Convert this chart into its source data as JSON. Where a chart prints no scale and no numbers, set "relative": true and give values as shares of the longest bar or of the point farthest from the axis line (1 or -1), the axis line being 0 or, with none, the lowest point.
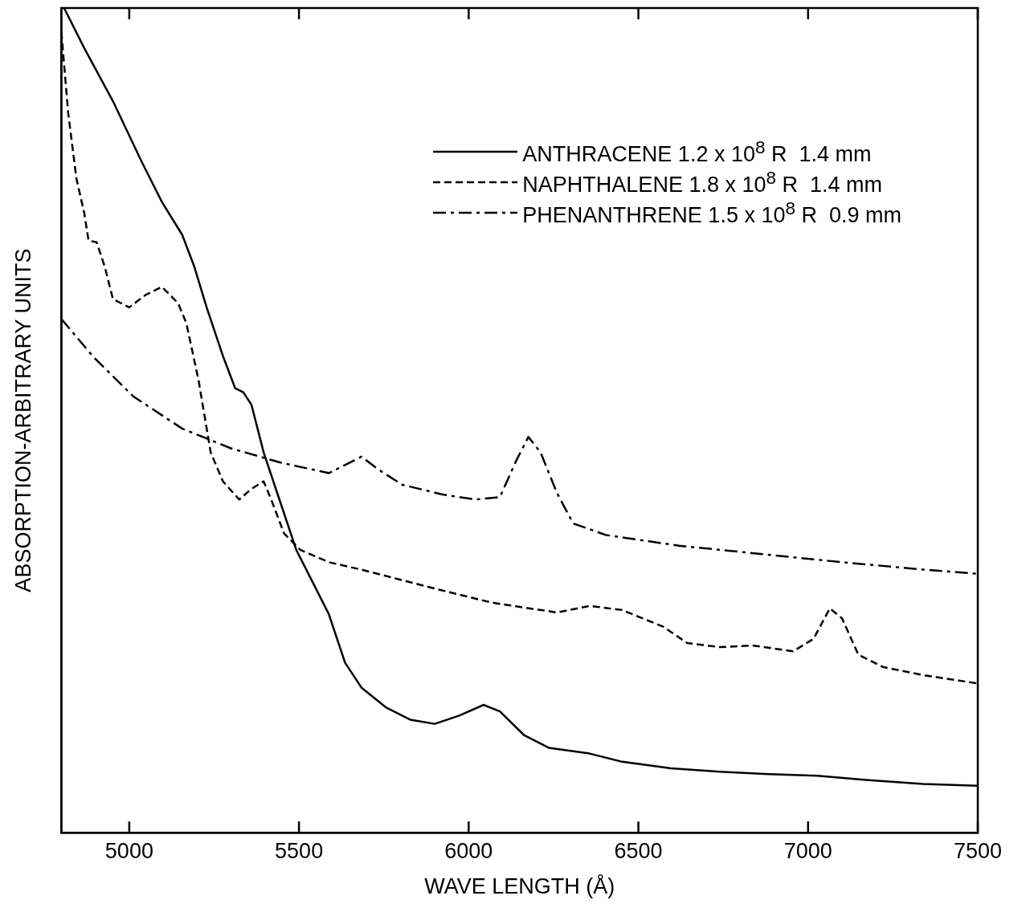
{
  "chart_data": {
    "type": "line",
    "xlabel": "WAVE LENGTH (Å)",
    "ylabel": "ABSORPTION-ARBITRARY UNITS",
    "relative": true,
    "xlim": [
      4800,
      7500
    ],
    "xticks": [
      5000,
      5500,
      6000,
      6500,
      7000,
      7500
    ],
    "grid": false,
    "legend": "top right",
    "marker": "none",
    "series": [
      {
        "name": "ANTHRACENE 1.2 x 10$^{8}$ R  1.4 mm",
        "color": "#000000",
        "line_style": "solid",
        "x": [
          4808,
          4868,
          4952,
          5036,
          5096,
          5156,
          5192,
          5228,
          5276,
          5312,
          5336,
          5360,
          5396,
          5444,
          5492,
          5540,
          5588,
          5636,
          5684,
          5756,
          5828,
          5900,
          5972,
          6044,
          6092,
          6164,
          6236,
          6356,
          6452,
          6596,
          6740,
          6884,
          7027,
          7171,
          7339,
          7500
        ],
        "values": [
          1.0,
          0.951,
          0.887,
          0.814,
          0.765,
          0.725,
          0.686,
          0.637,
          0.578,
          0.539,
          0.534,
          0.519,
          0.461,
          0.402,
          0.343,
          0.304,
          0.265,
          0.206,
          0.176,
          0.152,
          0.137,
          0.132,
          0.142,
          0.155,
          0.147,
          0.118,
          0.103,
          0.096,
          0.086,
          0.078,
          0.074,
          0.071,
          0.069,
          0.064,
          0.059,
          0.057
        ]
      },
      {
        "name": "NAPHTHALENE 1.8 x 10$^{8}$ R  1.4 mm",
        "color": "#000000",
        "line_style": "dashed",
        "x": [
          4800,
          4820,
          4844,
          4868,
          4880,
          4904,
          4928,
          4952,
          5000,
          5048,
          5096,
          5144,
          5168,
          5204,
          5240,
          5276,
          5324,
          5360,
          5396,
          5420,
          5456,
          5504,
          5588,
          5684,
          5900,
          6068,
          6260,
          6356,
          6452,
          6572,
          6644,
          6740,
          6836,
          6956,
          7016,
          7064,
          7100,
          7148,
          7220,
          7340,
          7500
        ],
        "values": [
          0.971,
          0.873,
          0.794,
          0.75,
          0.718,
          0.716,
          0.686,
          0.647,
          0.637,
          0.652,
          0.662,
          0.642,
          0.618,
          0.549,
          0.461,
          0.426,
          0.404,
          0.417,
          0.426,
          0.402,
          0.363,
          0.343,
          0.328,
          0.319,
          0.296,
          0.279,
          0.267,
          0.275,
          0.27,
          0.25,
          0.23,
          0.225,
          0.227,
          0.22,
          0.235,
          0.272,
          0.26,
          0.216,
          0.201,
          0.191,
          0.181
        ]
      },
      {
        "name": "PHENANTHRENE 1.5 x 10$^{8}$ R  0.9 mm",
        "color": "#000000",
        "line_style": "dashdot",
        "x": [
          4800,
          4892,
          5012,
          5156,
          5300,
          5444,
          5588,
          5636,
          5684,
          5732,
          5804,
          5924,
          6020,
          6092,
          6140,
          6176,
          6212,
          6260,
          6308,
          6404,
          6620,
          6860,
          7100,
          7340,
          7500
        ],
        "values": [
          0.623,
          0.578,
          0.529,
          0.49,
          0.466,
          0.449,
          0.436,
          0.446,
          0.456,
          0.441,
          0.422,
          0.41,
          0.404,
          0.407,
          0.451,
          0.48,
          0.461,
          0.412,
          0.375,
          0.361,
          0.348,
          0.338,
          0.328,
          0.319,
          0.314
        ]
      }
    ]
  }
}
